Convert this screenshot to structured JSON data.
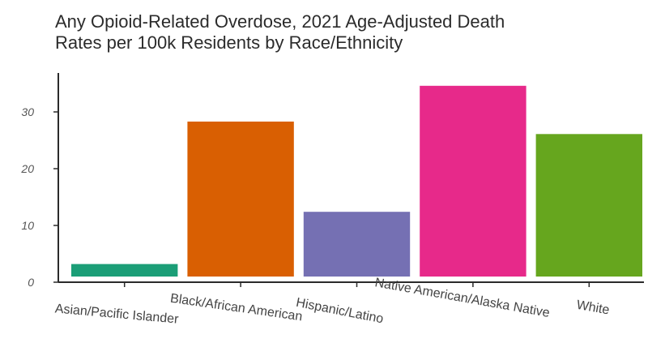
{
  "chart_data": {
    "type": "bar",
    "title_lines": [
      "Any Opioid-Related Overdose, 2021 Age-Adjusted Death",
      "Rates per 100k Residents by Race/Ethnicity"
    ],
    "xlabel": "",
    "ylabel": "",
    "ylim": [
      0,
      36
    ],
    "yticks": [
      0,
      10,
      20,
      30
    ],
    "grid": false,
    "legend": "none",
    "categories": [
      "Asian/Pacific Islander",
      "Black/African American",
      "Hispanic/Latino",
      "Native American/Alaska Native",
      "White"
    ],
    "values": [
      3.2,
      28.3,
      12.4,
      34.6,
      26.1
    ],
    "colors": [
      "#1b9e77",
      "#d95f02",
      "#7570b3",
      "#e7298a",
      "#66a61e"
    ]
  }
}
